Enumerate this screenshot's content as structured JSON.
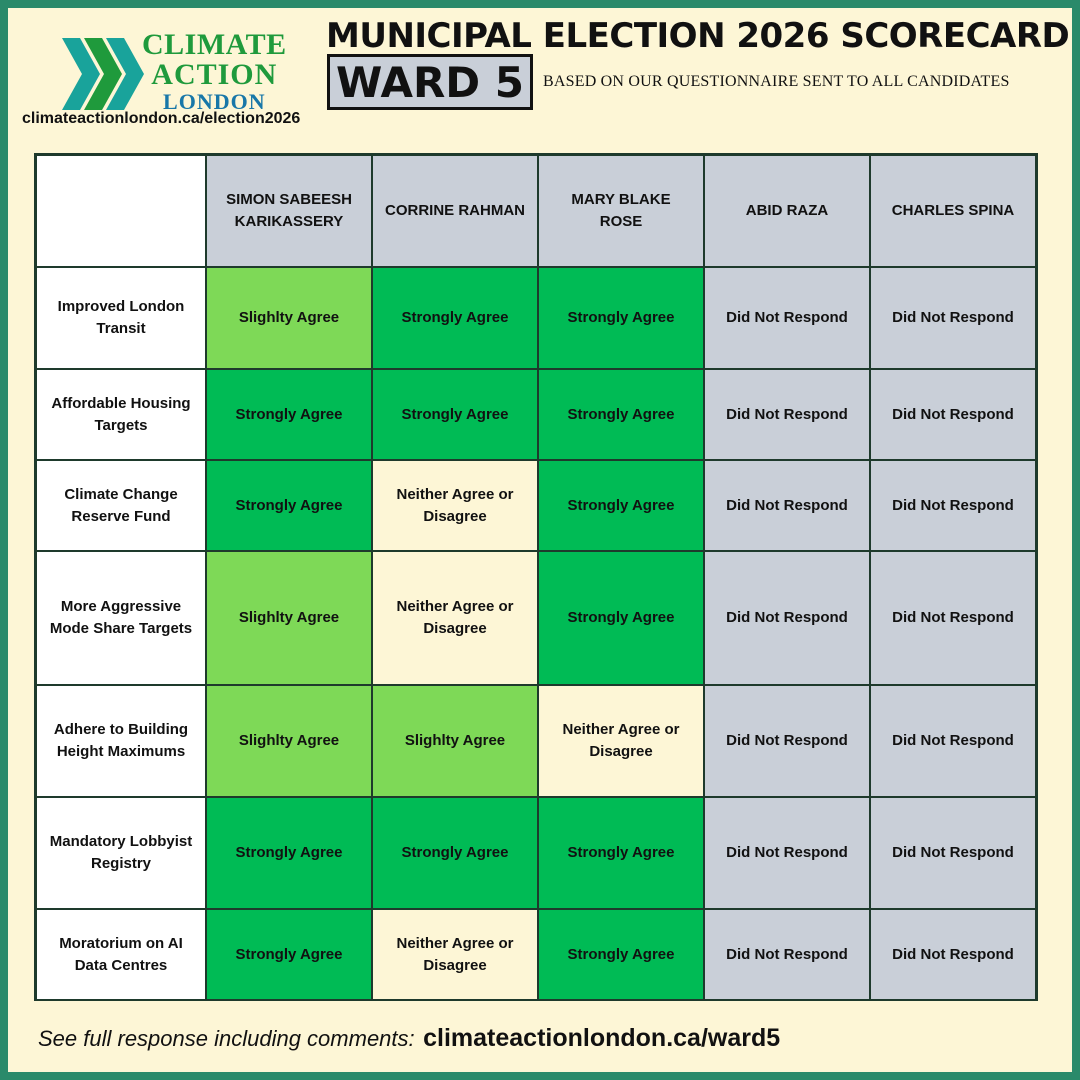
{
  "brand": {
    "line1": "CLIMATE",
    "line2": "ACTION",
    "line3": "LONDON",
    "url": "climateactionlondon.ca/election2026",
    "colors": {
      "green": "#1f9a3c",
      "blue": "#1877a8",
      "teal": "#19a39b"
    }
  },
  "header": {
    "title": "MUNICIPAL ELECTION 2026 SCORECARD",
    "ward": "WARD 5",
    "subtitle": "BASED ON OUR QUESTIONNAIRE SENT TO ALL CANDIDATES"
  },
  "candidates": [
    "SIMON SABEESH KARIKASSERY",
    "CORRINE RAHMAN",
    "MARY BLAKE ROSE",
    "ABID RAZA",
    "CHARLES SPINA"
  ],
  "legend_colors": {
    "Strongly Agree": "#00bb55",
    "Slighlty Agree": "#7ed957",
    "Neither Agree or Disagree": "#fdf6d6",
    "Did Not Respond": "#c9cfd8"
  },
  "rows": [
    {
      "issue": "Improved London Transit",
      "responses": [
        "Slighlty Agree",
        "Strongly Agree",
        "Strongly Agree",
        "Did Not Respond",
        "Did Not Respond"
      ]
    },
    {
      "issue": "Affordable Housing Targets",
      "responses": [
        "Strongly Agree",
        "Strongly Agree",
        "Strongly Agree",
        "Did Not Respond",
        "Did Not Respond"
      ]
    },
    {
      "issue": "Climate Change Reserve Fund",
      "responses": [
        "Strongly Agree",
        "Neither Agree or Disagree",
        "Strongly Agree",
        "Did Not Respond",
        "Did Not Respond"
      ]
    },
    {
      "issue": "More Aggressive Mode Share Targets",
      "responses": [
        "Slighlty Agree",
        "Neither Agree or Disagree",
        "Strongly Agree",
        "Did Not Respond",
        "Did Not Respond"
      ]
    },
    {
      "issue": "Adhere to Building Height Maximums",
      "responses": [
        "Slighlty Agree",
        "Slighlty Agree",
        "Neither Agree or Disagree",
        "Did Not Respond",
        "Did Not Respond"
      ]
    },
    {
      "issue": "Mandatory Lobbyist Registry",
      "responses": [
        "Strongly Agree",
        "Strongly Agree",
        "Strongly Agree",
        "Did Not Respond",
        "Did Not Respond"
      ]
    },
    {
      "issue": "Moratorium on AI Data Centres",
      "responses": [
        "Strongly Agree",
        "Neither Agree or Disagree",
        "Strongly Agree",
        "Did Not Respond",
        "Did Not Respond"
      ]
    }
  ],
  "footer": {
    "lead": "See full response including comments:",
    "link": "climateactionlondon.ca/ward5"
  }
}
